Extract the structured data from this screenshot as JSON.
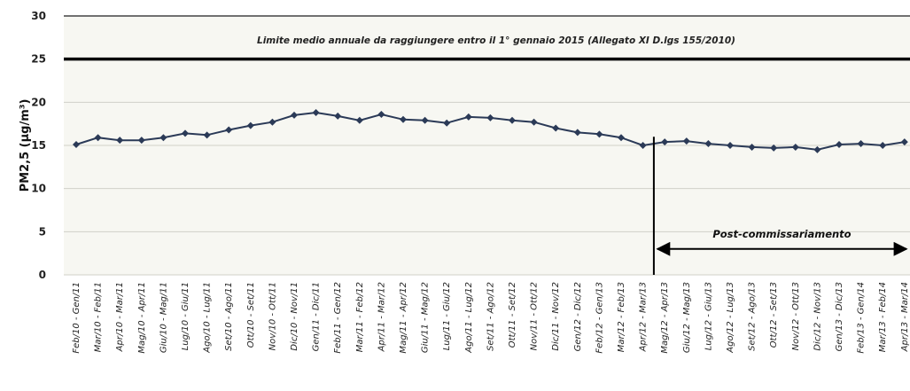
{
  "chart_data": {
    "type": "line",
    "ylabel": "PM2,5 (µg/m³)",
    "xlabel": "",
    "ylim": [
      0,
      30
    ],
    "yticks": [
      "0",
      "5",
      "10",
      "15",
      "20",
      "25",
      "30"
    ],
    "grid": true,
    "line_color": "#2b3a57",
    "limit": {
      "value": 25,
      "label": "Limite medio annuale da raggiungere entro il 1° gennaio 2015 (Allegato XI D.lgs 155/2010)",
      "color": "#000000"
    },
    "marker": {
      "at_index": 27,
      "label": "Post-commissariamento"
    },
    "categories": [
      "Feb/10 - Gen/11",
      "Mar/10 - Feb/11",
      "Apr/10 - Mar/11",
      "Mag/10 - Apr/11",
      "Giu/10 - Mag/11",
      "Lug/10 - Giu/11",
      "Ago/10 - Lug/11",
      "Set/10 - Ago/11",
      "Ott/10 - Set/11",
      "Nov/10 - Ott/11",
      "Dic/10 - Nov/11",
      "Gen/11 - Dic/11",
      "Feb/11 - Gen/12",
      "Mar/11 - Feb/12",
      "Apr/11 - Mar/12",
      "Mag/11 - Apr/12",
      "Giu/11 - Mag/12",
      "Lug/11 - Giu/12",
      "Ago/11 - Lug/12",
      "Set/11 - Ago/12",
      "Ott/11 - Set/12",
      "Nov/11 - Ott/12",
      "Dic/11 - Nov/12",
      "Gen/12 - Dic/12",
      "Feb/12 - Gen/13",
      "Mar/12 - Feb/13",
      "Apr/12 - Mar/13",
      "Mag/12 - Apr/13",
      "Giu/12 - Mag/13",
      "Lug/12 - Giu/13",
      "Ago/12 - Lug/13",
      "Set/12 - Ago/13",
      "Ott/12 - Set/13",
      "Nov/12 - Ott/13",
      "Dic/12 - Nov/13",
      "Gen/13 - Dic/13",
      "Feb/13 - Gen/14",
      "Mar/13 - Feb/14",
      "Apr/13 - Mar/14"
    ],
    "series": [
      {
        "values": [
          15.1,
          15.9,
          15.6,
          15.6,
          15.9,
          16.4,
          16.2,
          16.8,
          17.3,
          17.7,
          18.5,
          18.8,
          18.4,
          17.9,
          18.6,
          18.0,
          17.9,
          17.6,
          18.3,
          18.2,
          17.9,
          17.7,
          17.0,
          16.5,
          16.3,
          15.9,
          15.0,
          15.4,
          15.5,
          15.2,
          15.0,
          14.8,
          14.7,
          14.8,
          14.5,
          15.1,
          15.2,
          15.0,
          15.4
        ]
      }
    ]
  }
}
